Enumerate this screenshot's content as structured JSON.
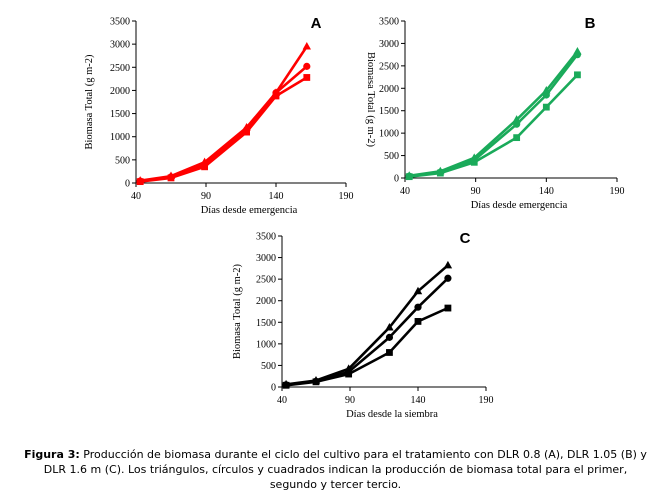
{
  "chart_data": [
    {
      "type": "line",
      "panel": "A",
      "color": "#ff0000",
      "xlabel": "Días desde emergencia",
      "ylabel": "Biomasa Total (g m-2)",
      "xlim": [
        40,
        190
      ],
      "ylim": [
        0,
        3500
      ],
      "xticks": [
        40,
        90,
        140,
        190
      ],
      "yticks": [
        0,
        500,
        1000,
        1500,
        2000,
        2500,
        3000,
        3500
      ],
      "series": [
        {
          "name": "primer tercio",
          "marker": "triangle",
          "x": [
            43,
            65,
            89,
            119,
            140,
            162
          ],
          "y": [
            50,
            150,
            450,
            1200,
            1950,
            2950
          ]
        },
        {
          "name": "segundo tercio",
          "marker": "circle",
          "x": [
            43,
            65,
            89,
            119,
            140,
            162
          ],
          "y": [
            40,
            130,
            400,
            1150,
            1950,
            2520
          ]
        },
        {
          "name": "tercer tercio",
          "marker": "square",
          "x": [
            43,
            65,
            89,
            119,
            140,
            162
          ],
          "y": [
            30,
            110,
            350,
            1100,
            1880,
            2280
          ]
        }
      ]
    },
    {
      "type": "line",
      "panel": "B",
      "color": "#1aaa5a",
      "xlabel": "Días desde  emergencia",
      "ylabel": "Biomasa Total (g m-2)",
      "xlim": [
        40,
        190
      ],
      "ylim": [
        0,
        3500
      ],
      "xticks": [
        40,
        90,
        140,
        190
      ],
      "yticks": [
        0,
        500,
        1000,
        1500,
        2000,
        2500,
        3000,
        3500
      ],
      "series": [
        {
          "name": "primer tercio",
          "marker": "triangle",
          "x": [
            43,
            65,
            89,
            119,
            140,
            162
          ],
          "y": [
            50,
            150,
            450,
            1300,
            1950,
            2820
          ]
        },
        {
          "name": "segundo tercio",
          "marker": "circle",
          "x": [
            43,
            65,
            89,
            119,
            140,
            162
          ],
          "y": [
            40,
            130,
            400,
            1200,
            1850,
            2750
          ]
        },
        {
          "name": "tercer tercio",
          "marker": "square",
          "x": [
            43,
            65,
            89,
            119,
            140,
            162
          ],
          "y": [
            30,
            110,
            350,
            900,
            1580,
            2300
          ]
        }
      ]
    },
    {
      "type": "line",
      "panel": "C",
      "color": "#000000",
      "xlabel": "Días desde la siembra",
      "ylabel": "Biomasa Total (g m-2)",
      "xlim": [
        40,
        190
      ],
      "ylim": [
        0,
        3500
      ],
      "xticks": [
        40,
        90,
        140,
        190
      ],
      "yticks": [
        0,
        500,
        1000,
        1500,
        2000,
        2500,
        3000,
        3500
      ],
      "series": [
        {
          "name": "primer tercio",
          "marker": "triangle",
          "x": [
            43,
            65,
            89,
            119,
            140,
            162
          ],
          "y": [
            60,
            150,
            420,
            1380,
            2220,
            2820
          ]
        },
        {
          "name": "segundo tercio",
          "marker": "circle",
          "x": [
            43,
            65,
            89,
            119,
            140,
            162
          ],
          "y": [
            50,
            130,
            350,
            1150,
            1850,
            2520
          ]
        },
        {
          "name": "tercer tercio",
          "marker": "square",
          "x": [
            43,
            65,
            89,
            119,
            140,
            162
          ],
          "y": [
            40,
            120,
            300,
            800,
            1520,
            1830
          ]
        }
      ]
    }
  ],
  "caption": {
    "label": "Figura 3:",
    "text": "Producción de biomasa durante el ciclo del cultivo para el tratamiento con DLR 0.8 (A), DLR 1.05 (B) y DLR 1.6 m (C). Los triángulos, círculos y cuadrados indican la producción de biomasa total para el primer, segundo y tercer tercio."
  }
}
